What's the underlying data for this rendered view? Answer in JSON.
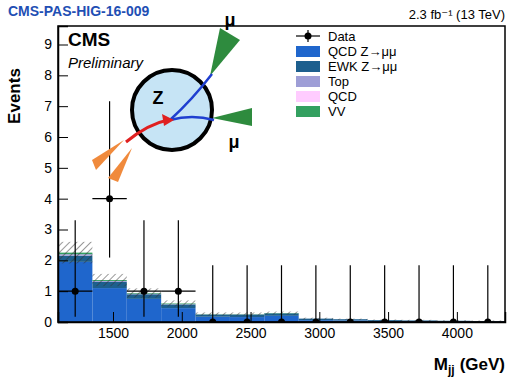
{
  "chart_data": {
    "type": "bar",
    "stacked": true,
    "title": "CMS-PAS-HIG-16-009",
    "subtitle": "2.3 fb⁻¹ (13 TeV)",
    "annotations": [
      "CMS",
      "Preliminary"
    ],
    "inset_labels": [
      "Z",
      "μ",
      "μ"
    ],
    "ylabel": "Events",
    "xlabel": {
      "main": "M",
      "subscript": "jj",
      "unit": "(GeV)"
    },
    "legend": "top-right",
    "xlim": [
      1100,
      4350
    ],
    "xticks": [
      1500,
      2000,
      2500,
      3000,
      3500,
      4000
    ],
    "ylim": [
      0,
      9.6
    ],
    "yticks": [
      0,
      1,
      2,
      3,
      4,
      5,
      6,
      7,
      8,
      9
    ],
    "bins": [
      1100,
      1350,
      1600,
      1850,
      2100,
      2350,
      2600,
      2850,
      3100,
      3350,
      3600,
      3850,
      4100,
      4350
    ],
    "uncertainty": [
      0.35,
      0.2,
      0.15,
      0.1,
      0.05,
      0.05,
      0.05,
      0.03,
      0.02,
      0.02,
      0.02,
      0.02,
      0.02
    ],
    "series": [
      {
        "name": "Data",
        "type": "scatter",
        "marker": "circle",
        "color": "#000000",
        "values": [
          1,
          4,
          1,
          1,
          0,
          0,
          0,
          0,
          0,
          0,
          0,
          0,
          0
        ],
        "error_low": [
          0.83,
          1.91,
          0.83,
          0.83,
          0,
          0,
          0,
          0,
          0,
          0,
          0,
          0,
          0
        ],
        "error_high": [
          2.3,
          3.16,
          2.3,
          2.3,
          1.84,
          1.84,
          1.84,
          1.84,
          1.84,
          1.84,
          1.84,
          1.84,
          1.84
        ]
      },
      {
        "name": "QCD Z→μμ",
        "type": "bar",
        "color": "#1f66cc",
        "values": [
          1.95,
          1.1,
          0.75,
          0.45,
          0.17,
          0.16,
          0.2,
          0.06,
          0.05,
          0.03,
          0.03,
          0.02,
          0.02
        ]
      },
      {
        "name": "EWK Z→μμ",
        "type": "bar",
        "color": "#1d5f8e",
        "values": [
          0.2,
          0.2,
          0.15,
          0.12,
          0.07,
          0.08,
          0.08,
          0.05,
          0.04,
          0.03,
          0.02,
          0.02,
          0.01
        ]
      },
      {
        "name": "Top",
        "type": "bar",
        "color": "#9e9ed6",
        "values": [
          0.05,
          0.03,
          0.02,
          0.01,
          0.01,
          0.01,
          0,
          0,
          0,
          0,
          0,
          0,
          0
        ]
      },
      {
        "name": "QCD",
        "type": "bar",
        "color": "#ffccff",
        "values": [
          0,
          0,
          0,
          0,
          0,
          0,
          0,
          0,
          0,
          0,
          0,
          0,
          0
        ]
      },
      {
        "name": "VV",
        "type": "bar",
        "color": "#33a060",
        "values": [
          0.05,
          0.03,
          0.02,
          0.02,
          0.01,
          0.01,
          0.01,
          0,
          0,
          0,
          0,
          0,
          0
        ]
      }
    ]
  }
}
